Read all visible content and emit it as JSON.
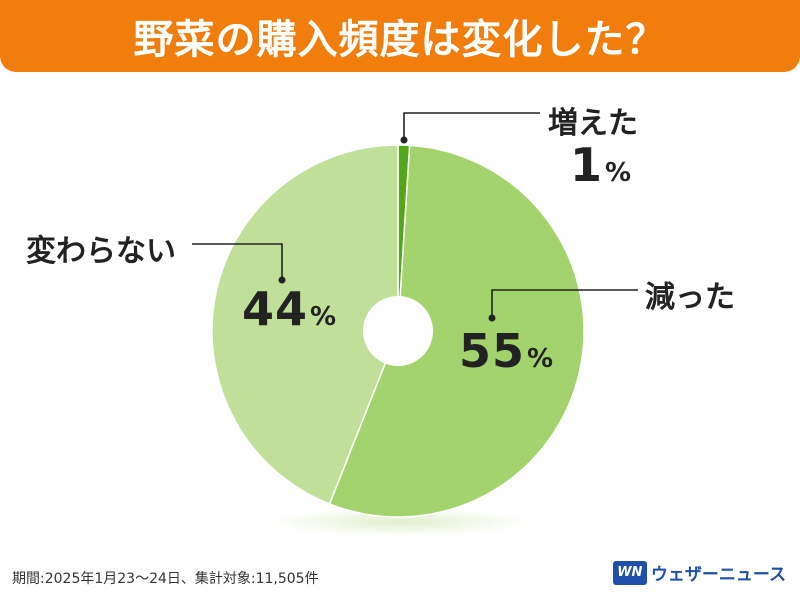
{
  "title": "野菜の購入頻度は変化した？",
  "chart_data": {
    "type": "pie",
    "style": "donut",
    "categories": [
      "増えた",
      "減った",
      "変わらない"
    ],
    "values": [
      1,
      55,
      44
    ],
    "value_labels": [
      "1",
      "55",
      "44"
    ],
    "unit": "%",
    "colors": [
      "#53a81a",
      "#a3d36c",
      "#c0e09a"
    ],
    "start_angle": "12 o'clock",
    "direction": "clockwise"
  },
  "footer": {
    "note": "期間:2025年1月23～24日、集計対象:11,505件",
    "brand_logo": "WN",
    "brand_name": "ウェザーニュース"
  }
}
